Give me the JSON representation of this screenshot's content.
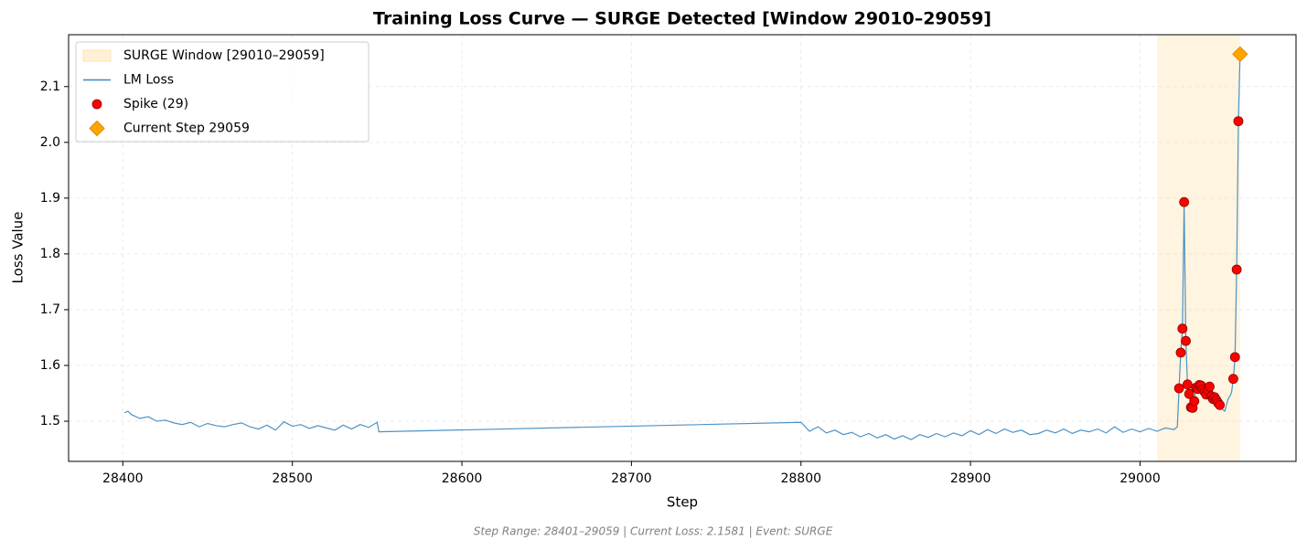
{
  "chart_data": {
    "type": "line",
    "title": "Training Loss Curve — SURGE Detected [Window 29010–29059]",
    "xlabel": "Step",
    "ylabel": "Loss Value",
    "footer": "Step Range: 28401–29059 | Current Loss: 2.1581 | Event: SURGE",
    "xlim": [
      28368,
      29092
    ],
    "ylim": [
      1.428,
      2.193
    ],
    "xticks": [
      28400,
      28500,
      28600,
      28700,
      28800,
      28900,
      29000
    ],
    "yticks": [
      1.5,
      1.6,
      1.7,
      1.8,
      1.9,
      {
        "value": 2,
        "label": "2.0"
      },
      2.1
    ],
    "grid": true,
    "legend": "upper left",
    "shaded_region": {
      "name": "SURGE Window [29010–29059]",
      "range": [
        29010,
        29059
      ],
      "color": "#ffe4b0"
    },
    "series": [
      {
        "name": "LM Loss",
        "kind": "line",
        "color": "#3a87c0",
        "x": [
          28401,
          28403,
          28405,
          28410,
          28415,
          28420,
          28425,
          28430,
          28435,
          28440,
          28445,
          28450,
          28455,
          28460,
          28465,
          28470,
          28475,
          28480,
          28485,
          28490,
          28495,
          28500,
          28505,
          28510,
          28515,
          28520,
          28525,
          28530,
          28535,
          28540,
          28545,
          28550,
          28551,
          28800,
          28805,
          28810,
          28815,
          28820,
          28825,
          28830,
          28835,
          28840,
          28845,
          28850,
          28855,
          28860,
          28865,
          28870,
          28875,
          28880,
          28885,
          28890,
          28895,
          28900,
          28905,
          28910,
          28915,
          28920,
          28925,
          28930,
          28935,
          28940,
          28945,
          28950,
          28955,
          28960,
          28965,
          28970,
          28975,
          28980,
          28985,
          28990,
          28995,
          29000,
          29005,
          29010,
          29015,
          29020,
          29022,
          29023,
          29024,
          29025,
          29026,
          29027,
          29028,
          29029,
          29030,
          29031,
          29032,
          29033,
          29034,
          29035,
          29036,
          29037,
          29038,
          29039,
          29040,
          29041,
          29042,
          29043,
          29044,
          29045,
          29046,
          29047,
          29048,
          29049,
          29050,
          29051,
          29052,
          29053,
          29054,
          29055,
          29056,
          29057,
          29058,
          29059
        ],
        "values": [
          1.515,
          1.518,
          1.512,
          1.505,
          1.508,
          1.5,
          1.502,
          1.497,
          1.494,
          1.498,
          1.49,
          1.496,
          1.492,
          1.49,
          1.494,
          1.497,
          1.49,
          1.486,
          1.493,
          1.484,
          1.499,
          1.491,
          1.494,
          1.487,
          1.492,
          1.488,
          1.484,
          1.493,
          1.486,
          1.494,
          1.489,
          1.498,
          1.481,
          1.498,
          1.482,
          1.49,
          1.479,
          1.484,
          1.476,
          1.48,
          1.472,
          1.478,
          1.47,
          1.476,
          1.468,
          1.474,
          1.467,
          1.476,
          1.471,
          1.478,
          1.472,
          1.479,
          1.474,
          1.483,
          1.476,
          1.485,
          1.478,
          1.486,
          1.48,
          1.484,
          1.476,
          1.478,
          1.484,
          1.479,
          1.486,
          1.478,
          1.484,
          1.481,
          1.486,
          1.479,
          1.49,
          1.48,
          1.486,
          1.481,
          1.487,
          1.482,
          1.488,
          1.485,
          1.49,
          1.559,
          1.623,
          1.666,
          1.893,
          1.644,
          1.566,
          1.549,
          1.525,
          1.524,
          1.536,
          1.56,
          1.558,
          1.565,
          1.564,
          1.557,
          1.553,
          1.548,
          1.556,
          1.562,
          1.545,
          1.54,
          1.543,
          1.538,
          1.533,
          1.529,
          1.524,
          1.52,
          1.518,
          1.53,
          1.54,
          1.545,
          1.552,
          1.576,
          1.615,
          1.772,
          2.038,
          2.1581
        ]
      },
      {
        "name": "Spike (29)",
        "kind": "scatter",
        "marker": "circle",
        "color": "#ff0000",
        "x": [
          29023,
          29024,
          29025,
          29026,
          29027,
          29028,
          29029,
          29030,
          29031,
          29032,
          29033,
          29034,
          29035,
          29036,
          29037,
          29038,
          29039,
          29040,
          29041,
          29042,
          29043,
          29044,
          29045,
          29046,
          29047,
          29055,
          29056,
          29057,
          29058
        ],
        "values": [
          1.559,
          1.623,
          1.666,
          1.893,
          1.644,
          1.566,
          1.549,
          1.525,
          1.524,
          1.536,
          1.56,
          1.558,
          1.565,
          1.564,
          1.557,
          1.553,
          1.548,
          1.556,
          1.562,
          1.545,
          1.54,
          1.543,
          1.538,
          1.533,
          1.529,
          1.576,
          1.615,
          1.772,
          2.038
        ]
      },
      {
        "name": "Current Step 29059",
        "kind": "scatter",
        "marker": "diamond",
        "color": "#ffa500",
        "x": [
          29059
        ],
        "values": [
          2.1581
        ]
      }
    ]
  }
}
